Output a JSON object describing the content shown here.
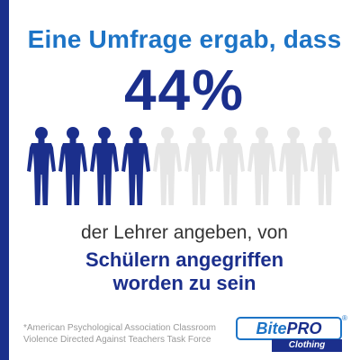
{
  "headline": "Eine Umfrage ergab, dass",
  "statistic": {
    "value": "44%",
    "fraction": 0.4
  },
  "pictogram": {
    "total": 10,
    "highlighted": 4,
    "icon": "person-icon",
    "colors": {
      "highlight": "#1b2f8c",
      "base": "#e6e6e6"
    }
  },
  "subline": "der Lehrer angeben, von",
  "emphasis": {
    "line1": "Schülern angegriffen",
    "line2": "worden zu sein"
  },
  "source": {
    "line1": "*American Psychological Association Classroom",
    "line2": "Violence Directed Against Teachers Task Force"
  },
  "logo": {
    "brand_part1": "Bite",
    "brand_part2": "PRO",
    "registered": "®",
    "subtitle": "Clothing"
  },
  "colors": {
    "accent_blue": "#1d74c6",
    "dark_blue": "#1b2f8c",
    "text_gray": "#333333"
  }
}
